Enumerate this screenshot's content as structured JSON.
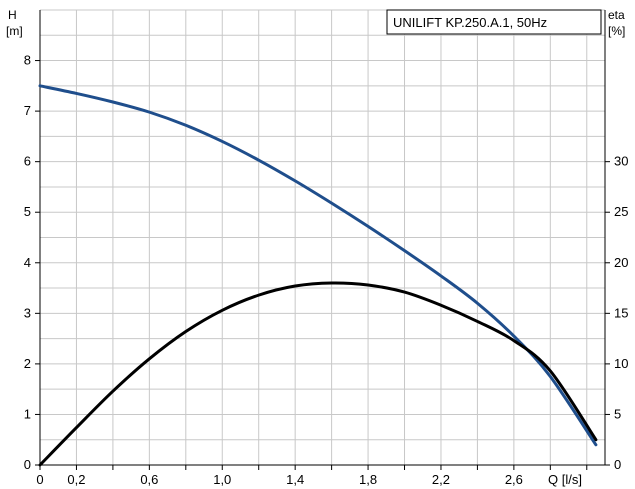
{
  "chart_data": {
    "type": "line",
    "title": "UNILIFT KP.250.A.1, 50Hz",
    "left_axis": {
      "label_top": "H",
      "label_unit": "[m]",
      "ylim": [
        0,
        9
      ],
      "ticks": [
        "0",
        "1",
        "2",
        "3",
        "4",
        "5",
        "6",
        "7",
        "8"
      ]
    },
    "right_axis": {
      "label_top": "eta",
      "label_unit": "[%]",
      "ylim": [
        0,
        45
      ],
      "ticks": [
        "0",
        "5",
        "10",
        "15",
        "20",
        "25",
        "30"
      ]
    },
    "x_axis": {
      "label": "Q [l/s]",
      "xlim": [
        0,
        3.1
      ],
      "ticks": [
        "0",
        "0,2",
        "0,6",
        "1,0",
        "1,4",
        "1,8",
        "2,2",
        "2,6"
      ]
    },
    "grid": true,
    "series": [
      {
        "color": "#1f4e8c",
        "axis": "left",
        "x": [
          0,
          0.2,
          0.4,
          0.6,
          0.8,
          1.0,
          1.2,
          1.4,
          1.6,
          1.8,
          2.0,
          2.2,
          2.4,
          2.6,
          2.8,
          3.05
        ],
        "y": [
          7.5,
          7.35,
          7.18,
          6.98,
          6.72,
          6.4,
          6.03,
          5.62,
          5.18,
          4.72,
          4.24,
          3.74,
          3.2,
          2.55,
          1.75,
          0.4
        ]
      },
      {
        "color": "#000000",
        "axis": "right",
        "x": [
          0,
          0.2,
          0.4,
          0.6,
          0.8,
          1.0,
          1.2,
          1.4,
          1.6,
          1.8,
          2.0,
          2.2,
          2.4,
          2.6,
          2.8,
          3.05
        ],
        "y": [
          0,
          3.7,
          7.3,
          10.5,
          13.2,
          15.3,
          16.8,
          17.7,
          18.0,
          17.8,
          17.1,
          15.8,
          14.2,
          12.3,
          9.3,
          2.5
        ]
      }
    ]
  }
}
